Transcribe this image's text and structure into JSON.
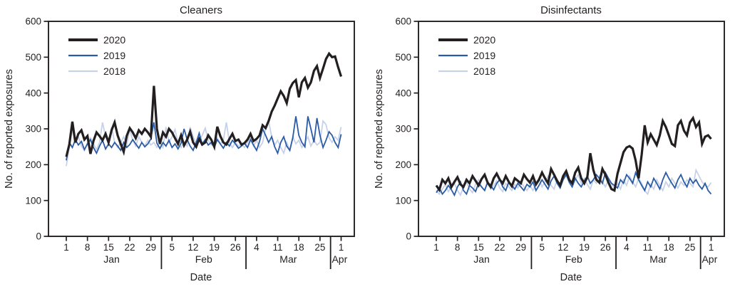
{
  "figure": {
    "background": "#ffffff",
    "text_color": "#231f20",
    "axis_color": "#231f20"
  },
  "chart_data": [
    {
      "type": "line",
      "title": "Cleaners",
      "xlabel": "Date",
      "ylabel": "No. of reported exposures",
      "ylim": [
        0,
        600
      ],
      "y_ticks": [
        0,
        100,
        200,
        300,
        400,
        500,
        600
      ],
      "x_unit": "daily, Jan 1 through Apr 1",
      "x_tick_days": [
        1,
        8,
        15,
        22,
        29,
        36,
        43,
        50,
        57,
        64,
        71,
        78,
        85,
        92
      ],
      "x_tick_labels": [
        "1",
        "8",
        "15",
        "22",
        "29",
        "5",
        "12",
        "19",
        "26",
        "4",
        "11",
        "18",
        "25",
        "1"
      ],
      "month_separator_days": [
        32.5,
        60.5,
        88.5
      ],
      "month_labels": [
        {
          "label": "Jan",
          "day": 16
        },
        {
          "label": "Feb",
          "day": 46.5
        },
        {
          "label": "Mar",
          "day": 74.5
        },
        {
          "label": "Apr",
          "day": 91.5
        }
      ],
      "legend_position": "top-left inside plot",
      "grid": false,
      "series": [
        {
          "name": "2020",
          "color": "#231f20",
          "width": 3.2,
          "values": [
            222,
            256,
            320,
            262,
            286,
            296,
            270,
            280,
            230,
            266,
            290,
            280,
            268,
            286,
            262,
            296,
            318,
            282,
            258,
            236,
            280,
            302,
            290,
            274,
            296,
            286,
            300,
            290,
            278,
            420,
            300,
            258,
            290,
            278,
            300,
            290,
            274,
            258,
            282,
            254,
            270,
            292,
            262,
            250,
            272,
            256,
            262,
            282,
            270,
            250,
            306,
            280,
            262,
            256,
            272,
            286,
            266,
            270,
            256,
            260,
            270,
            286,
            266,
            272,
            282,
            310,
            302,
            322,
            348,
            365,
            385,
            405,
            392,
            372,
            412,
            428,
            436,
            388,
            430,
            442,
            415,
            430,
            462,
            475,
            442,
            468,
            495,
            510,
            500,
            502,
            472,
            446
          ]
        },
        {
          "name": "2019",
          "color": "#2a5ca6",
          "width": 1.8,
          "values": [
            212,
            262,
            248,
            270,
            255,
            265,
            242,
            258,
            270,
            248,
            232,
            252,
            268,
            244,
            258,
            248,
            262,
            252,
            240,
            262,
            248,
            256,
            270,
            258,
            246,
            262,
            250,
            258,
            272,
            318,
            260,
            245,
            262,
            252,
            268,
            248,
            258,
            244,
            260,
            300,
            270,
            252,
            240,
            262,
            288,
            258,
            270,
            255,
            262,
            248,
            270,
            258,
            246,
            262,
            252,
            268,
            258,
            246,
            252,
            260,
            248,
            270,
            255,
            240,
            265,
            300,
            282,
            262,
            278,
            250,
            232,
            262,
            278,
            252,
            240,
            275,
            335,
            282,
            262,
            250,
            335,
            300,
            262,
            330,
            282,
            248,
            268,
            292,
            282,
            262,
            248,
            285
          ]
        },
        {
          "name": "2018",
          "color": "#c7d1e9",
          "width": 1.8,
          "values": [
            196,
            250,
            298,
            262,
            278,
            252,
            240,
            262,
            275,
            258,
            242,
            262,
            318,
            278,
            258,
            305,
            262,
            248,
            262,
            278,
            255,
            298,
            268,
            252,
            278,
            262,
            252,
            268,
            255,
            262,
            248,
            262,
            248,
            305,
            262,
            278,
            298,
            262,
            248,
            262,
            252,
            305,
            278,
            258,
            268,
            282,
            302,
            268,
            255,
            262,
            275,
            258,
            268,
            318,
            262,
            248,
            262,
            252,
            258,
            248,
            262,
            278,
            252,
            268,
            248,
            262,
            300,
            322,
            278,
            255,
            268,
            248,
            232,
            262,
            240,
            278,
            258,
            268,
            248,
            262,
            278,
            252,
            268,
            255,
            262,
            322,
            312,
            275,
            262,
            278,
            268,
            305
          ]
        }
      ]
    },
    {
      "type": "line",
      "title": "Disinfectants",
      "xlabel": "Date",
      "ylabel": "No. of reported exposures",
      "ylim": [
        0,
        600
      ],
      "y_ticks": [
        0,
        100,
        200,
        300,
        400,
        500,
        600
      ],
      "x_unit": "daily, Jan 1 through Apr 1",
      "x_tick_days": [
        1,
        8,
        15,
        22,
        29,
        36,
        43,
        50,
        57,
        64,
        71,
        78,
        85,
        92
      ],
      "x_tick_labels": [
        "1",
        "8",
        "15",
        "22",
        "29",
        "5",
        "12",
        "19",
        "26",
        "4",
        "11",
        "18",
        "25",
        "1"
      ],
      "month_separator_days": [
        32.5,
        60.5,
        88.5
      ],
      "month_labels": [
        {
          "label": "Jan",
          "day": 16
        },
        {
          "label": "Feb",
          "day": 46.5
        },
        {
          "label": "Mar",
          "day": 74.5
        },
        {
          "label": "Apr",
          "day": 91.5
        }
      ],
      "legend_position": "top-left inside plot",
      "grid": false,
      "series": [
        {
          "name": "2020",
          "color": "#231f20",
          "width": 3.2,
          "values": [
            142,
            130,
            158,
            148,
            162,
            138,
            152,
            165,
            145,
            138,
            158,
            148,
            168,
            155,
            142,
            160,
            172,
            150,
            138,
            162,
            175,
            158,
            148,
            168,
            152,
            140,
            162,
            155,
            148,
            172,
            160,
            150,
            168,
            145,
            158,
            178,
            162,
            148,
            188,
            172,
            155,
            142,
            168,
            182,
            158,
            148,
            178,
            192,
            162,
            148,
            165,
            232,
            185,
            158,
            150,
            188,
            172,
            150,
            132,
            128,
            175,
            205,
            235,
            248,
            252,
            245,
            212,
            162,
            228,
            310,
            262,
            285,
            270,
            255,
            282,
            322,
            305,
            282,
            258,
            252,
            310,
            322,
            295,
            282,
            318,
            330,
            305,
            318,
            258,
            278,
            282,
            272
          ]
        },
        {
          "name": "2019",
          "color": "#2a5ca6",
          "width": 1.8,
          "values": [
            122,
            135,
            118,
            128,
            142,
            130,
            115,
            138,
            152,
            128,
            118,
            142,
            135,
            125,
            148,
            138,
            128,
            152,
            142,
            130,
            148,
            158,
            138,
            128,
            152,
            142,
            132,
            148,
            138,
            128,
            145,
            138,
            152,
            128,
            142,
            158,
            145,
            132,
            155,
            168,
            148,
            135,
            158,
            172,
            152,
            138,
            162,
            148,
            138,
            155,
            168,
            148,
            158,
            172,
            162,
            148,
            178,
            162,
            148,
            142,
            135,
            158,
            148,
            172,
            162,
            148,
            178,
            158,
            142,
            128,
            152,
            138,
            162,
            148,
            132,
            158,
            178,
            162,
            148,
            135,
            158,
            172,
            152,
            138,
            162,
            148,
            158,
            142,
            132,
            148,
            128,
            118
          ]
        },
        {
          "name": "2018",
          "color": "#c7d1e9",
          "width": 1.8,
          "values": [
            128,
            118,
            132,
            145,
            125,
            138,
            148,
            128,
            115,
            138,
            152,
            132,
            122,
            145,
            158,
            138,
            128,
            148,
            132,
            142,
            155,
            135,
            125,
            148,
            138,
            128,
            145,
            135,
            152,
            138,
            128,
            142,
            128,
            148,
            162,
            138,
            152,
            168,
            142,
            132,
            158,
            145,
            162,
            178,
            148,
            138,
            158,
            172,
            148,
            162,
            145,
            132,
            158,
            148,
            168,
            152,
            138,
            158,
            145,
            135,
            148,
            132,
            158,
            142,
            168,
            152,
            138,
            162,
            148,
            128,
            118,
            145,
            132,
            158,
            142,
            128,
            152,
            138,
            162,
            148,
            135,
            152,
            142,
            158,
            148,
            138,
            185,
            168,
            152,
            142,
            138,
            150
          ]
        }
      ]
    }
  ]
}
